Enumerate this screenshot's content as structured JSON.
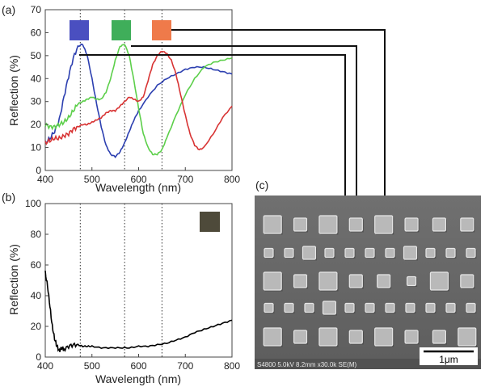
{
  "panels": {
    "a": "(a)",
    "b": "(b)",
    "c": "(c)"
  },
  "chart_data": [
    {
      "type": "line",
      "panel": "(a)",
      "xlabel": "Wavelength (nm)",
      "ylabel": "Reflection (%)",
      "xlim": [
        400,
        800
      ],
      "ylim": [
        0,
        70
      ],
      "xticks": [
        400,
        500,
        600,
        700,
        800
      ],
      "yticks": [
        0,
        10,
        20,
        30,
        40,
        50,
        60,
        70
      ],
      "grid": false,
      "series": [
        {
          "color": "#2c3fb0",
          "x": [
            400,
            410,
            420,
            430,
            440,
            450,
            460,
            470,
            480,
            490,
            500,
            510,
            520,
            530,
            540,
            550,
            560,
            570,
            580,
            590,
            600,
            620,
            640,
            660,
            680,
            700,
            720,
            740,
            760,
            780,
            800
          ],
          "y": [
            12,
            14,
            17,
            22,
            32,
            41,
            49,
            54,
            55,
            50,
            40,
            29,
            19,
            11,
            7,
            6,
            8,
            12,
            17,
            22,
            26,
            32,
            37,
            40,
            42,
            44,
            45,
            45,
            44,
            43,
            42
          ]
        },
        {
          "color": "#5ccf4a",
          "x": [
            400,
            410,
            420,
            430,
            440,
            450,
            460,
            470,
            480,
            490,
            500,
            510,
            520,
            530,
            540,
            550,
            560,
            570,
            580,
            590,
            600,
            610,
            620,
            630,
            640,
            650,
            660,
            680,
            700,
            720,
            740,
            760,
            780,
            800
          ],
          "y": [
            20,
            19,
            19,
            20,
            21,
            23,
            26,
            29,
            30,
            31,
            32,
            31,
            31,
            34,
            40,
            48,
            54,
            55,
            50,
            39,
            27,
            16,
            10,
            7,
            7,
            9,
            14,
            24,
            33,
            40,
            45,
            47,
            48,
            49
          ],
          "name": ""
        },
        {
          "color": "#d83434",
          "x": [
            400,
            410,
            420,
            430,
            440,
            450,
            460,
            470,
            480,
            490,
            500,
            510,
            520,
            530,
            540,
            550,
            560,
            570,
            580,
            590,
            600,
            610,
            620,
            630,
            640,
            650,
            660,
            670,
            680,
            690,
            700,
            710,
            720,
            730,
            740,
            760,
            780,
            800
          ],
          "y": [
            12,
            13,
            14,
            14,
            15,
            16,
            18,
            19,
            20,
            20,
            21,
            22,
            23,
            25,
            26,
            26,
            28,
            30,
            32,
            31,
            30,
            32,
            39,
            46,
            50,
            52,
            51,
            48,
            42,
            33,
            24,
            16,
            11,
            9,
            10,
            16,
            23,
            28
          ]
        }
      ],
      "guide_x": [
        475,
        570,
        650
      ]
    },
    {
      "type": "line",
      "panel": "(b)",
      "xlabel": "Wavelength (nm)",
      "ylabel": "Reflection (%)",
      "xlim": [
        400,
        800
      ],
      "ylim": [
        0,
        100
      ],
      "xticks": [
        400,
        500,
        600,
        700,
        800
      ],
      "yticks": [
        0,
        20,
        40,
        60,
        80,
        100
      ],
      "grid": false,
      "series": [
        {
          "color": "#000000",
          "x": [
            400,
            405,
            410,
            415,
            420,
            425,
            430,
            435,
            440,
            450,
            460,
            470,
            480,
            490,
            500,
            520,
            540,
            560,
            580,
            600,
            620,
            640,
            660,
            680,
            700,
            720,
            740,
            760,
            780,
            800
          ],
          "y": [
            55,
            46,
            33,
            20,
            12,
            7,
            4,
            6,
            5,
            7,
            8,
            8,
            7,
            7,
            7,
            6,
            6,
            6,
            6,
            7,
            7,
            8,
            9,
            11,
            13,
            16,
            18,
            20,
            22,
            24
          ]
        }
      ],
      "guide_x": [
        475,
        570,
        650
      ]
    }
  ],
  "swatches": {
    "a": [
      "#4a4fc0",
      "#3fae5a",
      "#ef7a4a"
    ],
    "b": "#4e4a3a"
  },
  "sem": {
    "info": "S4800 5.0kV 8.2mm x30.0k SE(M)",
    "scale_label": "1μm"
  }
}
